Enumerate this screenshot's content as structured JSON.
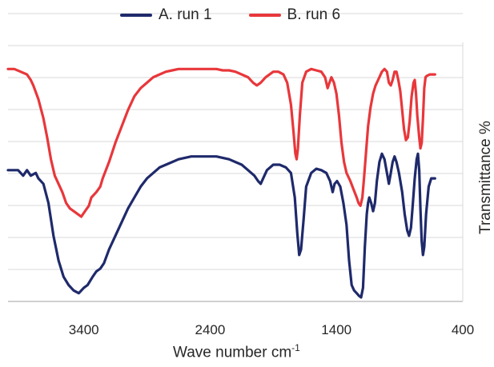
{
  "chart_data": {
    "type": "line",
    "xlabel_main": "Wave number cm",
    "xlabel_sup": "-1",
    "ylabel": "Transmittance %",
    "x_reversed": true,
    "xlim": [
      4000,
      400
    ],
    "ylim": [
      0,
      100
    ],
    "x_ticks": [
      3400,
      2400,
      1400,
      400
    ],
    "x_tick_labels": [
      "3400",
      "2400",
      "1400",
      "400"
    ],
    "grid": "horizontal",
    "legend_position": "top",
    "series": [
      {
        "name": "A. run 1",
        "color": "#1f2a6b",
        "points": [
          [
            4000,
            48
          ],
          [
            3920,
            48
          ],
          [
            3880,
            46
          ],
          [
            3850,
            48
          ],
          [
            3820,
            46
          ],
          [
            3780,
            47
          ],
          [
            3760,
            45
          ],
          [
            3720,
            43
          ],
          [
            3680,
            36
          ],
          [
            3640,
            24
          ],
          [
            3600,
            15
          ],
          [
            3560,
            9
          ],
          [
            3520,
            6
          ],
          [
            3480,
            4
          ],
          [
            3440,
            3
          ],
          [
            3400,
            5
          ],
          [
            3370,
            6
          ],
          [
            3330,
            9
          ],
          [
            3300,
            11
          ],
          [
            3270,
            12
          ],
          [
            3240,
            14
          ],
          [
            3200,
            19
          ],
          [
            3150,
            24
          ],
          [
            3100,
            29
          ],
          [
            3050,
            34
          ],
          [
            3000,
            38
          ],
          [
            2950,
            42
          ],
          [
            2900,
            45
          ],
          [
            2850,
            47
          ],
          [
            2800,
            49
          ],
          [
            2750,
            50
          ],
          [
            2700,
            51
          ],
          [
            2650,
            52
          ],
          [
            2600,
            52.5
          ],
          [
            2550,
            53
          ],
          [
            2500,
            53
          ],
          [
            2450,
            53
          ],
          [
            2400,
            53
          ],
          [
            2350,
            53
          ],
          [
            2300,
            52.5
          ],
          [
            2250,
            52
          ],
          [
            2200,
            51
          ],
          [
            2150,
            50
          ],
          [
            2100,
            48
          ],
          [
            2050,
            46
          ],
          [
            2020,
            44
          ],
          [
            2000,
            43
          ],
          [
            1980,
            45
          ],
          [
            1950,
            48
          ],
          [
            1900,
            50
          ],
          [
            1850,
            50
          ],
          [
            1800,
            49
          ],
          [
            1760,
            47
          ],
          [
            1730,
            38
          ],
          [
            1710,
            25
          ],
          [
            1695,
            17
          ],
          [
            1680,
            19
          ],
          [
            1660,
            30
          ],
          [
            1640,
            42
          ],
          [
            1600,
            47
          ],
          [
            1560,
            48.5
          ],
          [
            1520,
            48
          ],
          [
            1480,
            47
          ],
          [
            1450,
            44
          ],
          [
            1430,
            40
          ],
          [
            1415,
            43
          ],
          [
            1395,
            44
          ],
          [
            1370,
            42
          ],
          [
            1345,
            36
          ],
          [
            1320,
            28
          ],
          [
            1300,
            15
          ],
          [
            1280,
            6
          ],
          [
            1260,
            4
          ],
          [
            1240,
            3
          ],
          [
            1220,
            2
          ],
          [
            1205,
            1.5
          ],
          [
            1190,
            5
          ],
          [
            1175,
            20
          ],
          [
            1160,
            32
          ],
          [
            1150,
            36
          ],
          [
            1140,
            38
          ],
          [
            1125,
            36
          ],
          [
            1110,
            33
          ],
          [
            1095,
            36
          ],
          [
            1080,
            44
          ],
          [
            1060,
            51
          ],
          [
            1040,
            54
          ],
          [
            1020,
            52
          ],
          [
            1000,
            47
          ],
          [
            985,
            43
          ],
          [
            970,
            47
          ],
          [
            955,
            51
          ],
          [
            940,
            53
          ],
          [
            925,
            51
          ],
          [
            905,
            47
          ],
          [
            880,
            40
          ],
          [
            860,
            32
          ],
          [
            840,
            26
          ],
          [
            825,
            24
          ],
          [
            810,
            27
          ],
          [
            795,
            36
          ],
          [
            780,
            45
          ],
          [
            765,
            52
          ],
          [
            755,
            54
          ],
          [
            745,
            48
          ],
          [
            735,
            34
          ],
          [
            725,
            22
          ],
          [
            715,
            17
          ],
          [
            705,
            20
          ],
          [
            690,
            32
          ],
          [
            670,
            42
          ],
          [
            650,
            45
          ],
          [
            620,
            45
          ]
        ]
      },
      {
        "name": "B. run 6",
        "color": "#e8373b",
        "points": [
          [
            4000,
            85
          ],
          [
            3950,
            85
          ],
          [
            3900,
            84
          ],
          [
            3850,
            83
          ],
          [
            3820,
            81
          ],
          [
            3800,
            79
          ],
          [
            3760,
            74
          ],
          [
            3720,
            67
          ],
          [
            3690,
            60
          ],
          [
            3660,
            52
          ],
          [
            3630,
            46
          ],
          [
            3600,
            43
          ],
          [
            3570,
            40
          ],
          [
            3540,
            36
          ],
          [
            3510,
            34
          ],
          [
            3480,
            33
          ],
          [
            3450,
            32
          ],
          [
            3420,
            31
          ],
          [
            3390,
            33
          ],
          [
            3360,
            35
          ],
          [
            3340,
            38
          ],
          [
            3300,
            40
          ],
          [
            3270,
            42
          ],
          [
            3250,
            45
          ],
          [
            3200,
            51
          ],
          [
            3150,
            58
          ],
          [
            3100,
            64
          ],
          [
            3050,
            70
          ],
          [
            3000,
            75
          ],
          [
            2950,
            78
          ],
          [
            2900,
            80
          ],
          [
            2850,
            82
          ],
          [
            2800,
            83
          ],
          [
            2750,
            84
          ],
          [
            2700,
            84.5
          ],
          [
            2650,
            85
          ],
          [
            2600,
            85
          ],
          [
            2550,
            85
          ],
          [
            2500,
            85
          ],
          [
            2450,
            85
          ],
          [
            2400,
            85
          ],
          [
            2350,
            85
          ],
          [
            2300,
            84.5
          ],
          [
            2250,
            84.5
          ],
          [
            2200,
            84
          ],
          [
            2150,
            83
          ],
          [
            2100,
            82
          ],
          [
            2060,
            80
          ],
          [
            2030,
            79
          ],
          [
            2000,
            80
          ],
          [
            1960,
            82
          ],
          [
            1900,
            84
          ],
          [
            1860,
            84
          ],
          [
            1820,
            83
          ],
          [
            1790,
            80
          ],
          [
            1760,
            72
          ],
          [
            1740,
            62
          ],
          [
            1725,
            54
          ],
          [
            1715,
            52
          ],
          [
            1705,
            56
          ],
          [
            1690,
            68
          ],
          [
            1670,
            80
          ],
          [
            1640,
            84
          ],
          [
            1600,
            85
          ],
          [
            1560,
            84.5
          ],
          [
            1520,
            84
          ],
          [
            1490,
            82
          ],
          [
            1470,
            78
          ],
          [
            1455,
            80
          ],
          [
            1440,
            82
          ],
          [
            1420,
            80
          ],
          [
            1400,
            76
          ],
          [
            1380,
            68
          ],
          [
            1360,
            58
          ],
          [
            1340,
            51
          ],
          [
            1320,
            47
          ],
          [
            1290,
            44
          ],
          [
            1265,
            41
          ],
          [
            1240,
            38
          ],
          [
            1225,
            36
          ],
          [
            1210,
            35
          ],
          [
            1195,
            38
          ],
          [
            1180,
            46
          ],
          [
            1165,
            55
          ],
          [
            1150,
            64
          ],
          [
            1130,
            71
          ],
          [
            1110,
            76
          ],
          [
            1090,
            79
          ],
          [
            1070,
            81
          ],
          [
            1040,
            84
          ],
          [
            1020,
            85
          ],
          [
            1000,
            84
          ],
          [
            985,
            80
          ],
          [
            970,
            79
          ],
          [
            955,
            81
          ],
          [
            940,
            84
          ],
          [
            925,
            84
          ],
          [
            910,
            81
          ],
          [
            895,
            77
          ],
          [
            880,
            70
          ],
          [
            865,
            63
          ],
          [
            850,
            59
          ],
          [
            835,
            60
          ],
          [
            820,
            66
          ],
          [
            805,
            75
          ],
          [
            790,
            80
          ],
          [
            780,
            81
          ],
          [
            770,
            76
          ],
          [
            760,
            68
          ],
          [
            745,
            60
          ],
          [
            735,
            56
          ],
          [
            725,
            58
          ],
          [
            715,
            67
          ],
          [
            705,
            78
          ],
          [
            695,
            82
          ],
          [
            685,
            82.5
          ],
          [
            660,
            83
          ],
          [
            620,
            83
          ]
        ]
      }
    ]
  }
}
